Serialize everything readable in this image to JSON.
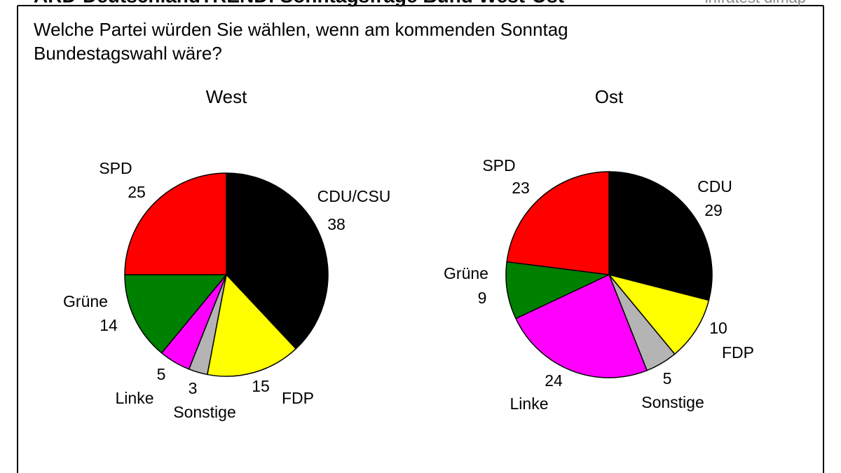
{
  "title": "ARD-DeutschlandTREND: Sonntagsfrage Bund West-Ost",
  "source": "infratest dimap",
  "subtitle": [
    "Welche Partei würden Sie wählen, wenn am kommenden Sonntag",
    "Bundestagswahl wäre?"
  ],
  "chart_data": [
    {
      "type": "pie",
      "title": "West",
      "categories": [
        "CDU/CSU",
        "FDP",
        "Sonstige",
        "Linke",
        "Grüne",
        "SPD"
      ],
      "values": [
        38,
        15,
        3,
        5,
        14,
        25
      ],
      "colors": [
        "#000000",
        "#ffff00",
        "#b4b4b4",
        "#ff00ff",
        "#008000",
        "#ff0000"
      ]
    },
    {
      "type": "pie",
      "title": "Ost",
      "categories": [
        "CDU",
        "FDP",
        "Sonstige",
        "Linke",
        "Grüne",
        "SPD"
      ],
      "values": [
        29,
        10,
        5,
        24,
        9,
        23
      ],
      "colors": [
        "#000000",
        "#ffff00",
        "#b4b4b4",
        "#ff00ff",
        "#008000",
        "#ff0000"
      ]
    }
  ]
}
